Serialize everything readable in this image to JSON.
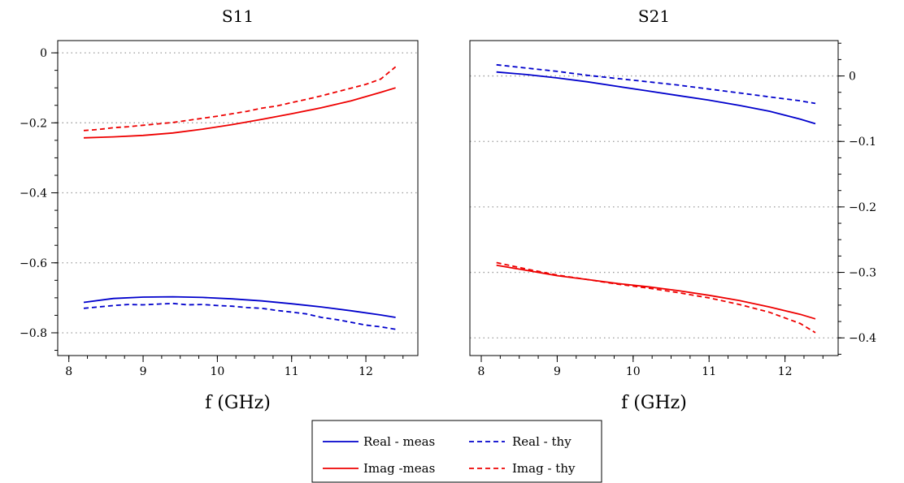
{
  "legend": {
    "position": "bottom-center",
    "columns": 2,
    "entries": [
      {
        "label": "Real - meas",
        "color": "#0000cc",
        "style": "solid"
      },
      {
        "label": "Real - thy",
        "color": "#0000cc",
        "style": "dashed"
      },
      {
        "label": "Imag -meas",
        "color": "#ee0000",
        "style": "solid"
      },
      {
        "label": "Imag - thy",
        "color": "#ee0000",
        "style": "dashed"
      }
    ]
  },
  "chart_data": [
    {
      "type": "line",
      "title": "S11",
      "xlabel": "f (GHz)",
      "ylabel": "",
      "xlim": [
        7.85,
        12.7
      ],
      "ylim": [
        -0.865,
        0.035
      ],
      "xticks": [
        8,
        9,
        10,
        11,
        12
      ],
      "xtick_minor_step": 0.25,
      "yticks": [
        0,
        -0.2,
        -0.4,
        -0.6,
        -0.8
      ],
      "ytick_labels": [
        "0",
        "−0.2",
        "−0.4",
        "−0.6",
        "−0.8"
      ],
      "ytick_minor_step": 0.05,
      "y_axis_side": "left",
      "grid": {
        "horizontal": true,
        "vertical": false,
        "style": "dotted"
      },
      "series": [
        {
          "label": "Real - meas",
          "color": "#0000cc",
          "dash": "solid",
          "x": [
            8.2,
            8.6,
            9.0,
            9.4,
            9.8,
            10.2,
            10.6,
            11.0,
            11.4,
            11.8,
            12.2,
            12.4
          ],
          "y": [
            -0.713,
            -0.702,
            -0.698,
            -0.697,
            -0.699,
            -0.703,
            -0.709,
            -0.717,
            -0.726,
            -0.737,
            -0.749,
            -0.756
          ]
        },
        {
          "label": "Real - thy",
          "color": "#0000cc",
          "dash": "dashed",
          "x": [
            8.2,
            8.4,
            8.6,
            8.8,
            9.0,
            9.2,
            9.4,
            9.6,
            9.8,
            10.0,
            10.2,
            10.4,
            10.6,
            10.8,
            11.0,
            11.2,
            11.4,
            11.6,
            11.8,
            12.0,
            12.2,
            12.4
          ],
          "y": [
            -0.73,
            -0.726,
            -0.722,
            -0.719,
            -0.72,
            -0.718,
            -0.716,
            -0.72,
            -0.719,
            -0.722,
            -0.724,
            -0.728,
            -0.73,
            -0.736,
            -0.741,
            -0.746,
            -0.756,
            -0.762,
            -0.77,
            -0.778,
            -0.783,
            -0.79
          ]
        },
        {
          "label": "Imag -meas",
          "color": "#ee0000",
          "dash": "solid",
          "x": [
            8.2,
            8.6,
            9.0,
            9.4,
            9.8,
            10.2,
            10.6,
            11.0,
            11.4,
            11.8,
            12.2,
            12.4
          ],
          "y": [
            -0.243,
            -0.24,
            -0.236,
            -0.229,
            -0.218,
            -0.205,
            -0.19,
            -0.174,
            -0.157,
            -0.137,
            -0.113,
            -0.1
          ]
        },
        {
          "label": "Imag - thy",
          "color": "#ee0000",
          "dash": "dashed",
          "x": [
            8.2,
            8.4,
            8.6,
            8.8,
            9.0,
            9.2,
            9.4,
            9.6,
            9.8,
            10.0,
            10.2,
            10.4,
            10.6,
            10.8,
            11.0,
            11.2,
            11.4,
            11.6,
            11.8,
            12.0,
            12.2,
            12.4
          ],
          "y": [
            -0.222,
            -0.219,
            -0.214,
            -0.211,
            -0.207,
            -0.203,
            -0.199,
            -0.193,
            -0.187,
            -0.181,
            -0.174,
            -0.167,
            -0.158,
            -0.152,
            -0.142,
            -0.133,
            -0.123,
            -0.112,
            -0.101,
            -0.09,
            -0.075,
            -0.04
          ]
        }
      ]
    },
    {
      "type": "line",
      "title": "S21",
      "xlabel": "f (GHz)",
      "ylabel": "",
      "xlim": [
        7.85,
        12.7
      ],
      "ylim": [
        -0.427,
        0.054
      ],
      "xticks": [
        8,
        9,
        10,
        11,
        12
      ],
      "xtick_minor_step": 0.25,
      "yticks": [
        0,
        -0.1,
        -0.2,
        -0.3,
        -0.4
      ],
      "ytick_labels": [
        "0",
        "−0.1",
        "−0.2",
        "−0.3",
        "−0.4"
      ],
      "ytick_minor_step": 0.025,
      "y_axis_side": "right",
      "grid": {
        "horizontal": true,
        "vertical": false,
        "style": "dotted"
      },
      "series": [
        {
          "label": "Real - meas",
          "color": "#0000cc",
          "dash": "solid",
          "x": [
            8.2,
            8.6,
            9.0,
            9.4,
            9.8,
            10.2,
            10.6,
            11.0,
            11.4,
            11.8,
            12.2,
            12.4
          ],
          "y": [
            0.006,
            0.002,
            -0.003,
            -0.009,
            -0.016,
            -0.023,
            -0.03,
            -0.037,
            -0.045,
            -0.054,
            -0.066,
            -0.073
          ]
        },
        {
          "label": "Real - thy",
          "color": "#0000cc",
          "dash": "dashed",
          "x": [
            8.2,
            8.6,
            9.0,
            9.4,
            9.8,
            10.2,
            10.6,
            11.0,
            11.4,
            11.8,
            12.2,
            12.4
          ],
          "y": [
            0.017,
            0.012,
            0.007,
            0.001,
            -0.004,
            -0.009,
            -0.014,
            -0.02,
            -0.026,
            -0.032,
            -0.038,
            -0.042
          ]
        },
        {
          "label": "Imag -meas",
          "color": "#ee0000",
          "dash": "solid",
          "x": [
            8.2,
            8.6,
            9.0,
            9.4,
            9.8,
            10.2,
            10.6,
            11.0,
            11.4,
            11.8,
            12.2,
            12.4
          ],
          "y": [
            -0.289,
            -0.297,
            -0.305,
            -0.311,
            -0.317,
            -0.322,
            -0.328,
            -0.335,
            -0.343,
            -0.353,
            -0.364,
            -0.371
          ]
        },
        {
          "label": "Imag - thy",
          "color": "#ee0000",
          "dash": "dashed",
          "x": [
            8.2,
            8.6,
            9.0,
            9.4,
            9.8,
            10.2,
            10.6,
            11.0,
            11.4,
            11.8,
            12.2,
            12.4
          ],
          "y": [
            -0.285,
            -0.295,
            -0.304,
            -0.311,
            -0.318,
            -0.324,
            -0.331,
            -0.339,
            -0.349,
            -0.361,
            -0.378,
            -0.392
          ]
        }
      ]
    }
  ]
}
